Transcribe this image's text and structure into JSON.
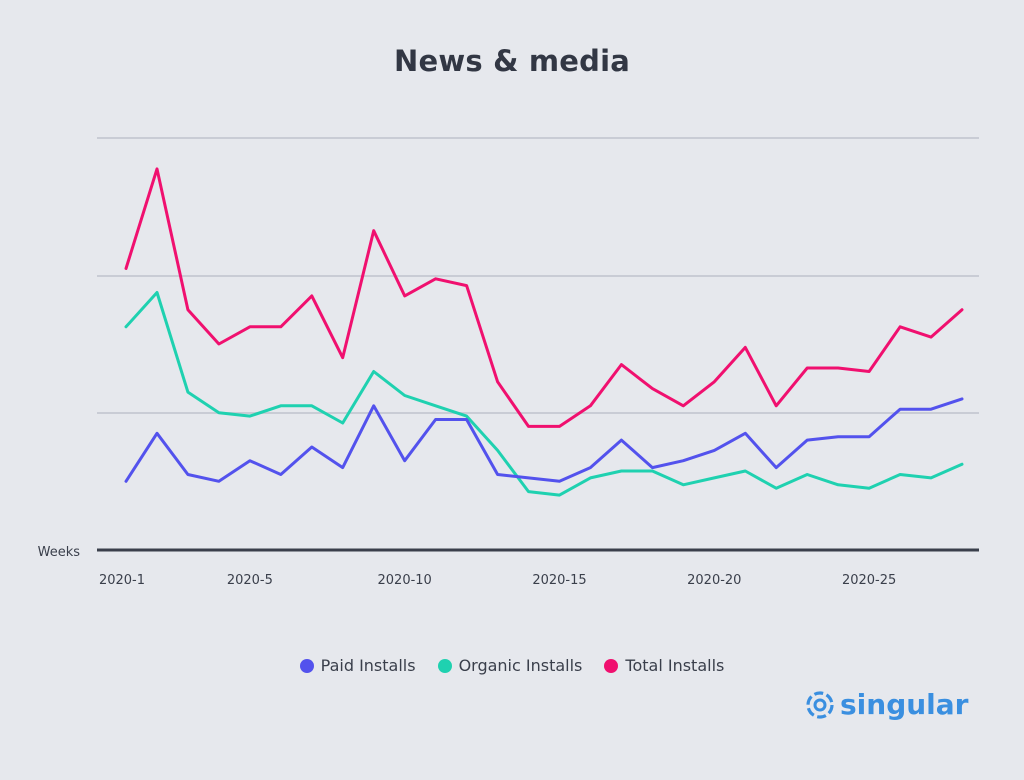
{
  "colors": {
    "background": "#e6e8ed",
    "grid": "#c9ccd5",
    "axis": "#3a3f4b",
    "paid": "#5352ed",
    "organic": "#1fd1b0",
    "total": "#f0106f",
    "brand": "#3a8fe0"
  },
  "brand": {
    "name": "singular",
    "icon": "singular-logo-icon"
  },
  "chart_data": {
    "type": "line",
    "title": "News & media",
    "xlabel": "Weeks",
    "ylabel": "",
    "grid": true,
    "y_tick_labels": false,
    "legend_position": "bottom-center",
    "x": [
      "2020-1",
      "2020-2",
      "2020-3",
      "2020-4",
      "2020-5",
      "2020-6",
      "2020-7",
      "2020-8",
      "2020-9",
      "2020-10",
      "2020-11",
      "2020-12",
      "2020-13",
      "2020-14",
      "2020-15",
      "2020-16",
      "2020-17",
      "2020-18",
      "2020-19",
      "2020-20",
      "2020-21",
      "2020-22",
      "2020-23",
      "2020-24",
      "2020-25",
      "2020-26",
      "2020-27",
      "2020-28"
    ],
    "x_tick_labels": [
      "2020-1",
      "2020-5",
      "2020-10",
      "2020-15",
      "2020-20",
      "2020-25"
    ],
    "series": [
      {
        "name": "Paid Installs",
        "color_key": "paid",
        "values": [
          20,
          34,
          22,
          20,
          26,
          22,
          30,
          24,
          42,
          26,
          38,
          38,
          22,
          21,
          20,
          24,
          32,
          24,
          26,
          29,
          34,
          24,
          32,
          33,
          33,
          41,
          41,
          44
        ]
      },
      {
        "name": "Organic Installs",
        "color_key": "organic",
        "values": [
          65,
          75,
          46,
          40,
          39,
          42,
          42,
          37,
          52,
          45,
          42,
          39,
          29,
          17,
          16,
          21,
          23,
          23,
          19,
          21,
          23,
          18,
          22,
          19,
          18,
          22,
          21,
          25
        ]
      },
      {
        "name": "Total Installs",
        "color_key": "total",
        "values": [
          82,
          111,
          70,
          60,
          65,
          65,
          74,
          56,
          93,
          74,
          79,
          77,
          49,
          36,
          36,
          42,
          54,
          47,
          42,
          49,
          59,
          42,
          53,
          53,
          52,
          65,
          62,
          70
        ]
      }
    ],
    "ylim": [
      0,
      120
    ]
  }
}
